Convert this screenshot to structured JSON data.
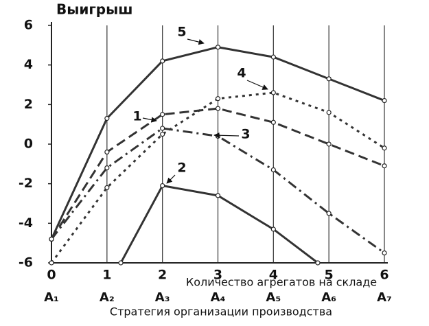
{
  "chart_data": {
    "type": "line",
    "title": "Выигрыш",
    "x_label": "Количество агрегатов на складе",
    "strategy_categories": [
      "A₁",
      "A₂",
      "A₃",
      "A₄",
      "A₅",
      "A₆",
      "A₇"
    ],
    "strategy_label": "Стратегия организации производства",
    "x": [
      0,
      1,
      2,
      3,
      4,
      5,
      6
    ],
    "xlim": [
      0,
      6
    ],
    "xticks": [
      0,
      1,
      2,
      3,
      4,
      5,
      6
    ],
    "ylim": [
      -6,
      6
    ],
    "yticks": [
      -6,
      -4,
      -2,
      0,
      2,
      4,
      6
    ],
    "grid": "vertical",
    "series": [
      {
        "name": "1",
        "color": "#333333",
        "dash": "14 7",
        "values": [
          -4.8,
          -0.4,
          1.5,
          1.8,
          1.1,
          0.0,
          -1.1
        ]
      },
      {
        "name": "2",
        "color": "#333333",
        "dash": "none",
        "x": [
          1.25,
          2,
          3,
          4,
          4.8
        ],
        "values": [
          -6,
          -2.1,
          -2.6,
          -4.3,
          -6
        ]
      },
      {
        "name": "3",
        "color": "#333333",
        "dash": "14 6 3 6",
        "values": [
          -4.8,
          -1.2,
          0.8,
          0.4,
          -1.3,
          -3.5,
          -5.5
        ]
      },
      {
        "name": "4",
        "color": "#333333",
        "dash": "4 6",
        "values": [
          -6,
          -2.2,
          0.5,
          2.3,
          2.6,
          1.6,
          -0.2
        ]
      },
      {
        "name": "5",
        "color": "#333333",
        "dash": "none",
        "values": [
          -4.8,
          1.3,
          4.2,
          4.9,
          4.4,
          3.3,
          2.2
        ]
      }
    ]
  }
}
